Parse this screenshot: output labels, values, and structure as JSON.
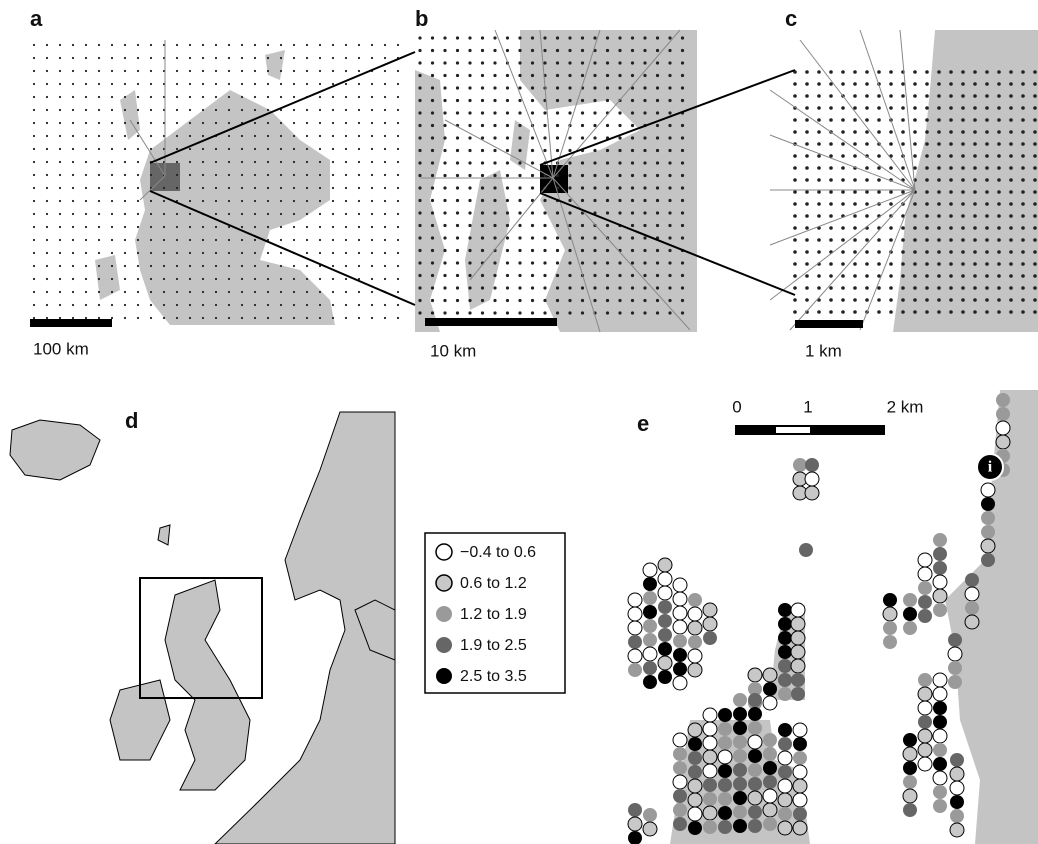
{
  "panels": [
    {
      "label": "a",
      "scale": "100 km"
    },
    {
      "label": "b",
      "scale": "10 km"
    },
    {
      "label": "c",
      "scale": "1 km"
    },
    {
      "label": "d"
    },
    {
      "label": "e",
      "scale_ticks": [
        "0",
        "1",
        "2 km"
      ]
    }
  ],
  "legend": [
    {
      "label": "−0.4 to 0.6",
      "color": "#ffffff"
    },
    {
      "label": "0.6 to 1.2",
      "color": "#c8c8c8"
    },
    {
      "label": "1.2 to 1.9",
      "color": "#9a9a9a"
    },
    {
      "label": "1.9 to 2.5",
      "color": "#666666"
    },
    {
      "label": "2.5 to 3.5",
      "color": "#000000"
    }
  ],
  "info_marker": "i"
}
